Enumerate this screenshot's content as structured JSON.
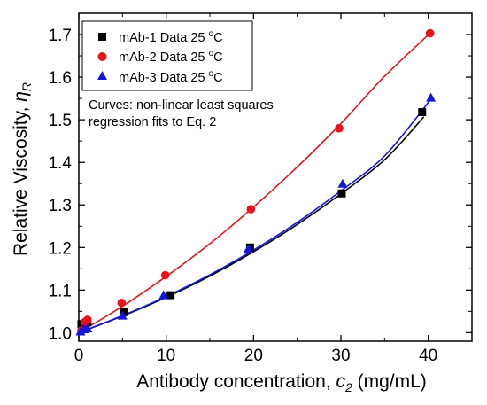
{
  "chart_data": {
    "type": "scatter",
    "xlabel": "Antibody concentration, c2 (mg/mL)",
    "xlabel_parts": {
      "prefix": "Antibody concentration, ",
      "symbol": "c",
      "subscript": "2",
      "suffix": " (mg/mL)"
    },
    "ylabel": "Relative Viscosity, ηR",
    "ylabel_parts": {
      "prefix": "Relative Viscosity, ",
      "symbol": "η",
      "subscript": "R"
    },
    "xlim": [
      0,
      45
    ],
    "ylim": [
      0.98,
      1.75
    ],
    "xticks": [
      0,
      10,
      20,
      30,
      40
    ],
    "xtick_labels": [
      "0",
      "10",
      "20",
      "30",
      "40"
    ],
    "yticks": [
      1.0,
      1.1,
      1.2,
      1.3,
      1.4,
      1.5,
      1.6,
      1.7
    ],
    "ytick_labels": [
      "1.0",
      "1.1",
      "1.2",
      "1.3",
      "1.4",
      "1.5",
      "1.6",
      "1.7"
    ],
    "grid": false,
    "legend_placement": "top-left",
    "annotation": [
      "Curves: non-linear least squares",
      "regression fits to Eq. 2"
    ],
    "series": [
      {
        "name": "mAb-1 Data 25 °C",
        "legend": {
          "prefix": "mAb-1 Data 25 ",
          "degree": "o",
          "unit": "C"
        },
        "marker": "square",
        "color": "#000000",
        "x": [
          0.3,
          0.6,
          1.0,
          5.2,
          10.5,
          19.6,
          30.1,
          39.3
        ],
        "y": [
          1.02,
          1.015,
          1.025,
          1.048,
          1.088,
          1.2,
          1.327,
          1.518
        ],
        "fit_x": [
          0,
          5,
          10,
          15,
          20,
          25,
          30,
          35,
          39.5
        ],
        "fit_y": [
          1.0,
          1.039,
          1.083,
          1.133,
          1.19,
          1.254,
          1.326,
          1.406,
          1.507
        ]
      },
      {
        "name": "mAb-2 Data 25 °C",
        "legend": {
          "prefix": "mAb-2 Data 25 ",
          "degree": "o",
          "unit": "C"
        },
        "marker": "circle",
        "color": "#e8141b",
        "x": [
          0.3,
          0.7,
          1.0,
          4.9,
          9.9,
          19.7,
          29.8,
          40.2
        ],
        "y": [
          1.005,
          1.025,
          1.03,
          1.07,
          1.135,
          1.29,
          1.48,
          1.703
        ],
        "fit_x": [
          0,
          5,
          10,
          15,
          20,
          25,
          30,
          35,
          40.2
        ],
        "fit_y": [
          1.0,
          1.062,
          1.132,
          1.209,
          1.295,
          1.389,
          1.491,
          1.602,
          1.703
        ]
      },
      {
        "name": "mAb-3 Data 25 °C",
        "legend": {
          "prefix": "mAb-3 Data 25 ",
          "degree": "o",
          "unit": "C"
        },
        "marker": "triangle",
        "color": "#1515e0",
        "x": [
          0.2,
          0.6,
          1.0,
          5.0,
          9.7,
          19.4,
          30.2,
          40.3
        ],
        "y": [
          1.003,
          1.008,
          1.01,
          1.04,
          1.088,
          1.197,
          1.35,
          1.552
        ],
        "fit_x": [
          0,
          5,
          10,
          15,
          20,
          25,
          30,
          35,
          40.3
        ],
        "fit_y": [
          1.0,
          1.04,
          1.085,
          1.136,
          1.194,
          1.259,
          1.333,
          1.415,
          1.548
        ]
      }
    ]
  }
}
